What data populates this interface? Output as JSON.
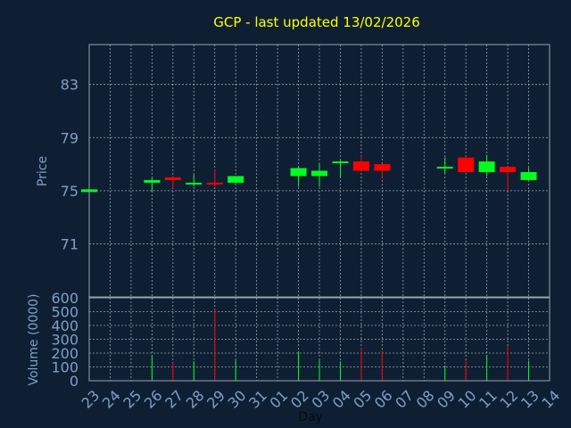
{
  "title": "GCP - last updated 13/02/2026",
  "colors": {
    "background": "#0f1f33",
    "plot_border": "#9aa3ad",
    "grid": "#c8cdd3",
    "title": "#ffff00",
    "axis_text": "#7f9fc8",
    "up": "#00ff1e",
    "down": "#ff0000"
  },
  "chart_data": [
    {
      "type": "candlestick",
      "ylabel": "Price",
      "ylim": [
        67.0,
        86.0
      ],
      "yticks": [
        71,
        75,
        79,
        83
      ],
      "grid": true,
      "days": [
        "23",
        "24",
        "25",
        "26",
        "27",
        "28",
        "29",
        "30",
        "31",
        "01",
        "02",
        "03",
        "04",
        "05",
        "06",
        "07",
        "08",
        "09",
        "10",
        "11",
        "12",
        "13",
        "14"
      ],
      "candles": [
        {
          "day": "23",
          "open": 74.9,
          "close": 75.1,
          "high": 75.1,
          "low": 74.9
        },
        {
          "day": "26",
          "open": 75.6,
          "close": 75.8,
          "high": 76.0,
          "low": 74.9
        },
        {
          "day": "27",
          "open": 76.0,
          "close": 75.8,
          "high": 76.1,
          "low": 75.2
        },
        {
          "day": "28",
          "open": 75.5,
          "close": 75.6,
          "high": 76.2,
          "low": 75.3
        },
        {
          "day": "29",
          "open": 75.6,
          "close": 75.5,
          "high": 76.6,
          "low": 75.3
        },
        {
          "day": "30",
          "open": 75.6,
          "close": 76.1,
          "high": 76.1,
          "low": 75.5
        },
        {
          "day": "02",
          "open": 76.1,
          "close": 76.7,
          "high": 76.8,
          "low": 75.3
        },
        {
          "day": "03",
          "open": 76.1,
          "close": 76.5,
          "high": 77.0,
          "low": 75.3
        },
        {
          "day": "04",
          "open": 77.1,
          "close": 77.2,
          "high": 77.3,
          "low": 76.0
        },
        {
          "day": "05",
          "open": 77.2,
          "close": 76.5,
          "high": 77.6,
          "low": 76.5
        },
        {
          "day": "06",
          "open": 77.0,
          "close": 76.5,
          "high": 77.0,
          "low": 75.9
        },
        {
          "day": "09",
          "open": 76.7,
          "close": 76.8,
          "high": 77.5,
          "low": 76.3
        },
        {
          "day": "10",
          "open": 77.5,
          "close": 76.4,
          "high": 77.6,
          "low": 76.3
        },
        {
          "day": "11",
          "open": 76.4,
          "close": 77.2,
          "high": 77.7,
          "low": 76.1
        },
        {
          "day": "12",
          "open": 76.8,
          "close": 76.4,
          "high": 76.8,
          "low": 75.0
        },
        {
          "day": "13",
          "open": 75.8,
          "close": 76.4,
          "high": 76.7,
          "low": 75.8
        }
      ]
    },
    {
      "type": "bar",
      "ylabel": "Volume (0000)",
      "xlabel": "Day",
      "ylim": [
        0,
        600
      ],
      "yticks": [
        0,
        100,
        200,
        300,
        400,
        500,
        600
      ],
      "grid": true,
      "bars": [
        {
          "day": "26",
          "value": 180,
          "direction": "up"
        },
        {
          "day": "27",
          "value": 130,
          "direction": "down"
        },
        {
          "day": "28",
          "value": 140,
          "direction": "up"
        },
        {
          "day": "29",
          "value": 520,
          "direction": "down"
        },
        {
          "day": "30",
          "value": 150,
          "direction": "up"
        },
        {
          "day": "02",
          "value": 210,
          "direction": "up"
        },
        {
          "day": "03",
          "value": 150,
          "direction": "up"
        },
        {
          "day": "04",
          "value": 140,
          "direction": "up"
        },
        {
          "day": "05",
          "value": 240,
          "direction": "down"
        },
        {
          "day": "06",
          "value": 220,
          "direction": "down"
        },
        {
          "day": "09",
          "value": 110,
          "direction": "up"
        },
        {
          "day": "10",
          "value": 150,
          "direction": "down"
        },
        {
          "day": "11",
          "value": 185,
          "direction": "up"
        },
        {
          "day": "12",
          "value": 250,
          "direction": "down"
        },
        {
          "day": "13",
          "value": 145,
          "direction": "up"
        }
      ]
    }
  ]
}
